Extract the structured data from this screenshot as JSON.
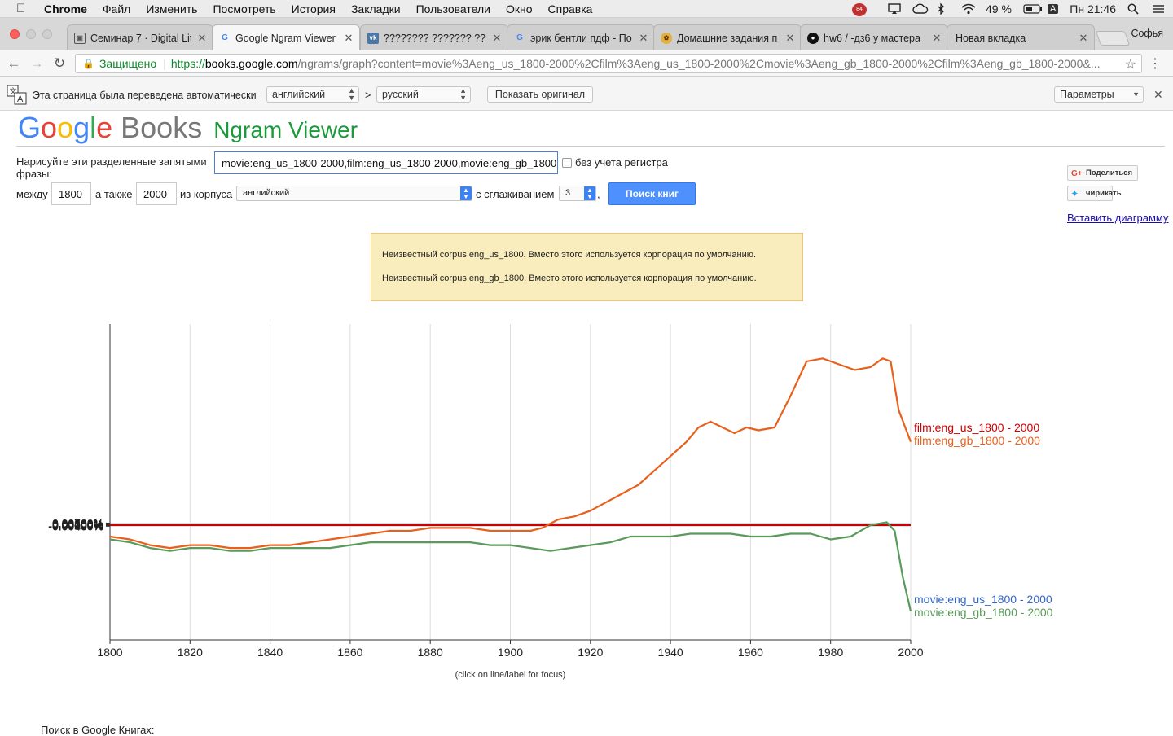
{
  "menubar": {
    "app_name": "Chrome",
    "items": [
      "Файл",
      "Изменить",
      "Посмотреть",
      "История",
      "Закладки",
      "Пользователи",
      "Окно",
      "Справка"
    ],
    "status": {
      "battery": "49 %",
      "input_source": "A",
      "clock": "Пн 21:46",
      "badge_count": "84"
    }
  },
  "tabs": [
    {
      "label": "Семинар 7 · Digital Lit",
      "active": false
    },
    {
      "label": "Google Ngram Viewer",
      "active": true
    },
    {
      "label": "???????? ??????? ????",
      "active": false
    },
    {
      "label": "эрик бентли пдф - По",
      "active": false
    },
    {
      "label": "Домашние задания п",
      "active": false
    },
    {
      "label": "hw6 / -дз6 у мастера",
      "active": false
    },
    {
      "label": "Новая вкладка",
      "active": false
    }
  ],
  "profile_name": "Софья",
  "toolbar": {
    "secure_label": "Защищено",
    "url_scheme": "https://",
    "url_host": "books.google.com",
    "url_path": "/ngrams/graph?content=movie%3Aeng_us_1800-2000%2Cfilm%3Aeng_us_1800-2000%2Cmovie%3Aeng_gb_1800-2000%2Cfilm%3Aeng_gb_1800-2000&..."
  },
  "translate": {
    "message": "Эта страница была переведена автоматически",
    "from_lang": "английский",
    "gt": ">",
    "to_lang": "русский",
    "show_original": "Показать оригинал",
    "options": "Параметры"
  },
  "page": {
    "logo_letters": [
      "G",
      "o",
      "o",
      "g",
      "l",
      "e"
    ],
    "logo_books": "Books",
    "logo_ngram": "Ngram Viewer",
    "phrase_label_line1": "Нарисуйте эти разделенные запятыми",
    "phrase_label_line2": "фразы:",
    "phrase_value": "movie:eng_us_1800-2000,film:eng_us_1800-2000,movie:eng_gb_1800-2000,film:eng_gb_1800-2000",
    "case_insensitive": "без учета регистра",
    "between_label": "между",
    "year_start": "1800",
    "and_label": "а также",
    "year_end": "2000",
    "corpus_label": "из корпуса",
    "corpus_value": "английский",
    "smoothing_label": "с сглаживанием",
    "smoothing_value": "3",
    "comma": ",",
    "search_button": "Поиск книг",
    "share_button": "Поделиться",
    "tweet_button": "чирикать",
    "embed_link": "Вставить диаграмму",
    "warning_1": "Неизвестный corpus eng_us_1800. Вместо этого используется корпорация по умолчанию.",
    "warning_2": "Неизвестный corpus eng_gb_1800. Вместо этого используется корпорация по умолчанию.",
    "chart_hint": "(click on line/label for focus)",
    "bottom_text": "Поиск в Google Книгах:"
  },
  "colors": {
    "film_us": "#cc0000",
    "film_gb": "#e8601c",
    "movie_us": "#3366cc",
    "movie_gb": "#5a9a5a"
  },
  "chart_data": {
    "type": "line",
    "xlim": [
      1800,
      2000
    ],
    "ylim": [
      -0.004,
      0.007
    ],
    "x_ticks": [
      "1800",
      "1820",
      "1840",
      "1860",
      "1880",
      "1900",
      "1920",
      "1940",
      "1960",
      "1980",
      "2000"
    ],
    "y_ticks": [
      "0.00700%",
      "0.00600%",
      "0.00500%",
      "0.00400%",
      "0.00300%",
      "0.00200%",
      "0.00100%",
      "0.00000%",
      "-0.00100%",
      "-0.00200%",
      "-0.00300%",
      "-0.00400%"
    ],
    "grid": true,
    "series": [
      {
        "name": "film:eng_us_1800 - 2000",
        "color": "#cc0000",
        "x": [
          1800,
          2000
        ],
        "y": [
          0.0,
          0.0
        ]
      },
      {
        "name": "film:eng_gb_1800 - 2000",
        "color": "#e8601c",
        "x": [
          1800,
          1805,
          1810,
          1815,
          1820,
          1825,
          1830,
          1835,
          1840,
          1845,
          1850,
          1855,
          1860,
          1865,
          1870,
          1875,
          1880,
          1885,
          1890,
          1895,
          1900,
          1905,
          1908,
          1912,
          1916,
          1920,
          1924,
          1928,
          1932,
          1936,
          1940,
          1944,
          1947,
          1950,
          1953,
          1956,
          1959,
          1962,
          1966,
          1970,
          1974,
          1978,
          1982,
          1986,
          1990,
          1993,
          1995,
          1997,
          2000
        ],
        "y": [
          -0.0004,
          -0.0005,
          -0.0007,
          -0.0008,
          -0.0007,
          -0.0007,
          -0.0008,
          -0.0008,
          -0.0007,
          -0.0007,
          -0.0006,
          -0.0005,
          -0.0004,
          -0.0003,
          -0.0002,
          -0.0002,
          -0.0001,
          -0.0001,
          -0.0001,
          -0.0002,
          -0.0002,
          -0.0002,
          -0.0001,
          0.0002,
          0.0003,
          0.0005,
          0.0008,
          0.0011,
          0.0014,
          0.0019,
          0.0024,
          0.0029,
          0.0034,
          0.0036,
          0.0034,
          0.0032,
          0.0034,
          0.0033,
          0.0034,
          0.0045,
          0.0057,
          0.0058,
          0.0056,
          0.0054,
          0.0055,
          0.0058,
          0.0057,
          0.004,
          0.0029
        ]
      },
      {
        "name": "movie:eng_us_1800 - 2000",
        "color": "#3366cc",
        "x": [
          1800,
          2000
        ],
        "y": [
          0.0,
          0.0
        ]
      },
      {
        "name": "movie:eng_gb_1800 - 2000",
        "color": "#5a9a5a",
        "x": [
          1800,
          1805,
          1810,
          1815,
          1820,
          1825,
          1830,
          1835,
          1840,
          1845,
          1850,
          1855,
          1860,
          1865,
          1870,
          1875,
          1880,
          1885,
          1890,
          1895,
          1900,
          1905,
          1910,
          1915,
          1920,
          1925,
          1930,
          1935,
          1940,
          1945,
          1950,
          1955,
          1960,
          1965,
          1970,
          1975,
          1980,
          1985,
          1990,
          1994,
          1996,
          1998,
          2000
        ],
        "y": [
          -0.0005,
          -0.0006,
          -0.0008,
          -0.0009,
          -0.0008,
          -0.0008,
          -0.0009,
          -0.0009,
          -0.0008,
          -0.0008,
          -0.0008,
          -0.0008,
          -0.0007,
          -0.0006,
          -0.0006,
          -0.0006,
          -0.0006,
          -0.0006,
          -0.0006,
          -0.0007,
          -0.0007,
          -0.0008,
          -0.0009,
          -0.0008,
          -0.0007,
          -0.0006,
          -0.0004,
          -0.0004,
          -0.0004,
          -0.0003,
          -0.0003,
          -0.0003,
          -0.0004,
          -0.0004,
          -0.0003,
          -0.0003,
          -0.0005,
          -0.0004,
          0.0,
          0.0001,
          -0.0002,
          -0.0018,
          -0.003
        ]
      }
    ]
  }
}
